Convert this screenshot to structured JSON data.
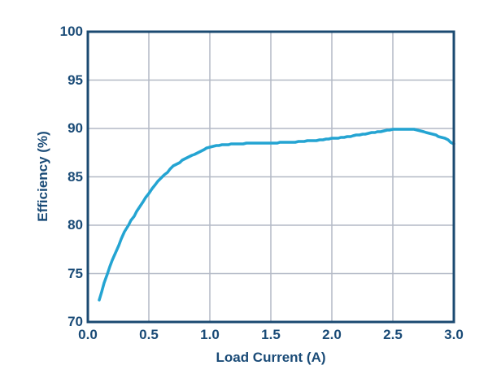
{
  "figure": {
    "background": "#ffffff"
  },
  "chart_data": {
    "type": "line",
    "title": "",
    "xlabel": "Load Current (A)",
    "ylabel": "Efficiency (%)",
    "xlim": [
      0,
      3
    ],
    "ylim": [
      70,
      100
    ],
    "x_ticks": [
      0,
      0.5,
      1.0,
      1.5,
      2.0,
      2.5,
      3.0
    ],
    "x_tick_labels": [
      "0.0",
      "0.5",
      "1.0",
      "1.5",
      "2.0",
      "2.5",
      "3.0"
    ],
    "y_ticks": [
      70,
      75,
      80,
      85,
      90,
      95,
      100
    ],
    "y_tick_labels": [
      "70",
      "75",
      "80",
      "85",
      "90",
      "95",
      "100"
    ],
    "grid": true,
    "legend": "none",
    "frame_color": "#1B4A71",
    "grid_color": "#B3B9C6",
    "text_color": "#1A4B77",
    "series": [
      {
        "name": "Efficiency",
        "color": "#24A4D2",
        "x": [
          0.09,
          0.13,
          0.16,
          0.2,
          0.25,
          0.3,
          0.33,
          0.4,
          0.45,
          0.5,
          0.55,
          0.6,
          0.65,
          0.7,
          0.75,
          0.8,
          0.85,
          0.9,
          0.95,
          1.0,
          1.1,
          1.2,
          1.3,
          1.4,
          1.5,
          1.6,
          1.7,
          1.8,
          1.9,
          2.0,
          2.1,
          2.2,
          2.3,
          2.4,
          2.5,
          2.6,
          2.7,
          2.8,
          2.9,
          2.95,
          3.0
        ],
        "y": [
          72.3,
          74.0,
          75.0,
          76.4,
          77.9,
          79.3,
          80.0,
          81.4,
          82.4,
          83.3,
          84.2,
          84.9,
          85.5,
          86.1,
          86.5,
          86.9,
          87.2,
          87.5,
          87.8,
          88.1,
          88.3,
          88.4,
          88.45,
          88.5,
          88.5,
          88.55,
          88.6,
          88.7,
          88.8,
          88.95,
          89.1,
          89.3,
          89.5,
          89.7,
          89.9,
          89.95,
          89.85,
          89.5,
          89.1,
          88.8,
          88.4
        ]
      }
    ]
  }
}
